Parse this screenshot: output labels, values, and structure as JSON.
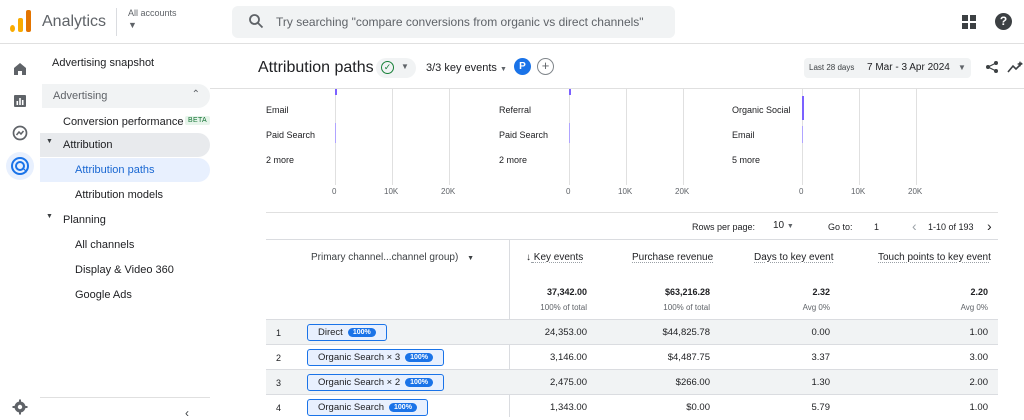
{
  "app": {
    "name": "Analytics",
    "account_label": "All accounts"
  },
  "search": {
    "placeholder": "Try searching \"compare conversions from organic vs direct channels\""
  },
  "sidebar": {
    "snapshot": "Advertising snapshot",
    "section": "Advertising",
    "conversion_performance": "Conversion performance",
    "beta": "BETA",
    "attribution": "Attribution",
    "attribution_paths": "Attribution paths",
    "attribution_models": "Attribution models",
    "planning": "Planning",
    "all_channels": "All channels",
    "display_video": "Display & Video 360",
    "google_ads": "Google Ads"
  },
  "header": {
    "title": "Attribution paths",
    "key_events": "3/3 key events",
    "avatar_letter": "P",
    "date_label": "Last 28 days",
    "date_range": "7 Mar - 3 Apr 2024"
  },
  "chart_data": [
    {
      "type": "bar",
      "categories": [
        "Email",
        "Paid Search",
        "2 more"
      ],
      "ticks": [
        "0",
        "10K",
        "20K"
      ]
    },
    {
      "type": "bar",
      "categories": [
        "Referral",
        "Paid Search",
        "2 more"
      ],
      "ticks": [
        "0",
        "10K",
        "20K"
      ]
    },
    {
      "type": "bar",
      "categories": [
        "Organic Social",
        "Email",
        "5 more"
      ],
      "ticks": [
        "0",
        "10K",
        "20K"
      ]
    }
  ],
  "pagination": {
    "rows_label": "Rows per page:",
    "rows_value": "10",
    "goto_label": "Go to:",
    "goto_value": "1",
    "range": "1-10 of 193"
  },
  "table": {
    "dimension": "Primary channel...channel group)",
    "columns": [
      "Key events",
      "Purchase revenue",
      "Days to key event",
      "Touch points to key event"
    ],
    "totals": [
      "37,342.00",
      "$63,216.28",
      "2.32",
      "2.20"
    ],
    "totals_sub": [
      "100% of total",
      "100% of total",
      "Avg 0%",
      "Avg 0%"
    ],
    "rows": [
      {
        "n": "1",
        "path": "Direct",
        "pct": "100%",
        "v": [
          "24,353.00",
          "$44,825.78",
          "0.00",
          "1.00"
        ]
      },
      {
        "n": "2",
        "path": "Organic Search × 3",
        "pct": "100%",
        "v": [
          "3,146.00",
          "$4,487.75",
          "3.37",
          "3.00"
        ]
      },
      {
        "n": "3",
        "path": "Organic Search × 2",
        "pct": "100%",
        "v": [
          "2,475.00",
          "$266.00",
          "1.30",
          "2.00"
        ]
      },
      {
        "n": "4",
        "path": "Organic Search",
        "pct": "100%",
        "v": [
          "1,343.00",
          "$0.00",
          "5.79",
          "1.00"
        ]
      }
    ]
  }
}
